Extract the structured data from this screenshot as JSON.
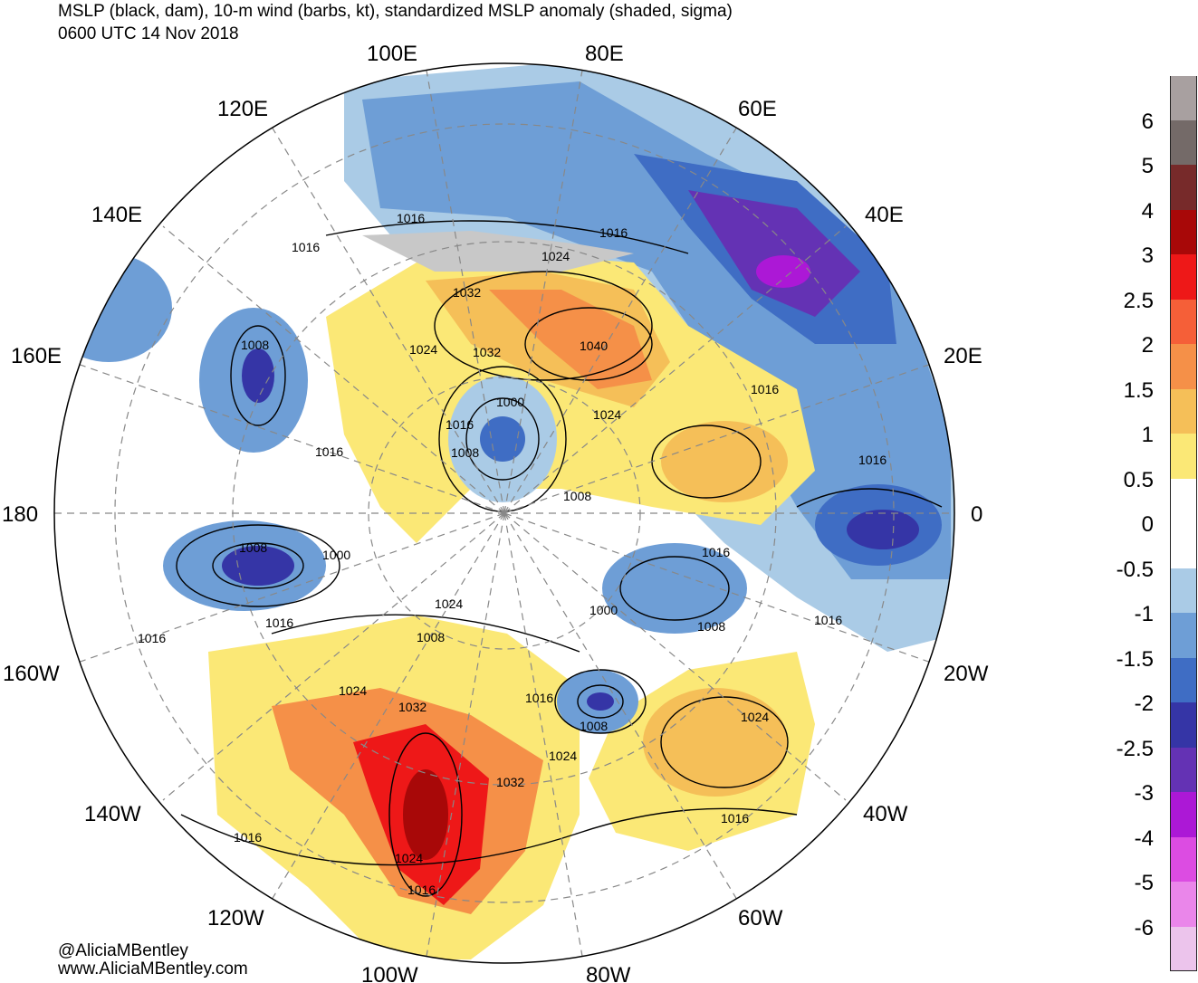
{
  "title": {
    "line1": "MSLP (black, dam), 10-m wind (barbs, kt), standardized MSLP anomaly (shaded, sigma)",
    "line2": "0600 UTC 14 Nov 2018"
  },
  "longitude_labels": {
    "e100": "100E",
    "e80": "80E",
    "e120": "120E",
    "e60": "60E",
    "e140": "140E",
    "e40": "40E",
    "e160": "160E",
    "e20": "20E",
    "d180": "180",
    "d0": "0",
    "w160": "160W",
    "w20": "20W",
    "w140": "140W",
    "w40": "40W",
    "w120": "120W",
    "w60": "60W",
    "w100": "100W",
    "w80": "80W"
  },
  "isobar_labels": [
    "1016",
    "1016",
    "1016",
    "1024",
    "1032",
    "1040",
    "1024",
    "1032",
    "1008",
    "1000",
    "1016",
    "1008",
    "1016",
    "1024",
    "1016",
    "1016",
    "1008",
    "1016",
    "1008",
    "1000",
    "1016",
    "1024",
    "1008",
    "1000",
    "1008",
    "1016",
    "1016",
    "1024",
    "1032",
    "1016",
    "1008",
    "1024",
    "1024",
    "1032",
    "1016",
    "1016",
    "1024",
    "1016"
  ],
  "colorbar": {
    "labels": [
      "6",
      "5",
      "4",
      "3",
      "2.5",
      "2",
      "1.5",
      "1",
      "0.5",
      "0",
      "-0.5",
      "-1",
      "-1.5",
      "-2",
      "-2.5",
      "-3",
      "-4",
      "-5",
      "-6"
    ],
    "colors": [
      "#a8a0a0",
      "#746a68",
      "#772a2a",
      "#a80808",
      "#ee1818",
      "#f55f38",
      "#f59048",
      "#f5bf58",
      "#fbe876",
      "#ffffff",
      "#ffffff",
      "#aacbe6",
      "#6e9ed6",
      "#3f6dc4",
      "#3535a6",
      "#6432b4",
      "#ac18d6",
      "#dc4ce2",
      "#ea86ea",
      "#ecc4ec"
    ]
  },
  "credits": {
    "handle": "@AliciaMBentley",
    "site": "www.AliciaMBentley.com"
  }
}
